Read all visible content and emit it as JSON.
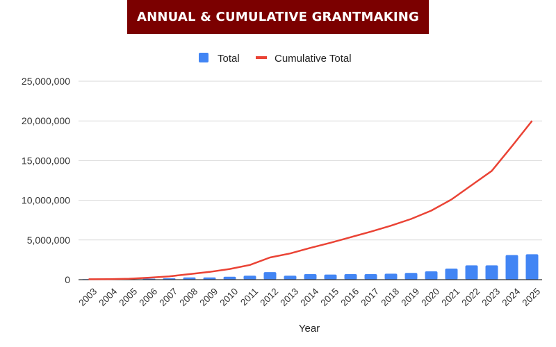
{
  "header": {
    "title": "ANNUAL & CUMULATIVE GRANTMAKING"
  },
  "colors": {
    "title_bg": "#7b0000",
    "bar": "#4285f4",
    "line": "#ea4335",
    "grid": "#d9d9d9",
    "axis": "#333333"
  },
  "chart_data": {
    "type": "bar+line",
    "title": "ANNUAL & CUMULATIVE GRANTMAKING",
    "xlabel": "Year",
    "ylabel": "",
    "ylim": [
      0,
      25000000
    ],
    "yticks": [
      0,
      5000000,
      10000000,
      15000000,
      20000000,
      25000000
    ],
    "ytick_labels": [
      "0",
      "5,000,000",
      "10,000,000",
      "15,000,000",
      "20,000,000",
      "25,000,000"
    ],
    "grid": true,
    "legend_position": "top-center",
    "categories": [
      "2003",
      "2004",
      "2005",
      "2006",
      "2007",
      "2008",
      "2009",
      "2010",
      "2011",
      "2012",
      "2013",
      "2014",
      "2015",
      "2016",
      "2017",
      "2018",
      "2019",
      "2020",
      "2021",
      "2022",
      "2023",
      "2024",
      "2025"
    ],
    "series": [
      {
        "name": "Total",
        "type": "bar",
        "values": [
          50000,
          20000,
          50000,
          130000,
          170000,
          280000,
          280000,
          370000,
          500000,
          950000,
          500000,
          700000,
          650000,
          700000,
          700000,
          750000,
          850000,
          1050000,
          1400000,
          1800000,
          1800000,
          3100000,
          3200000
        ]
      },
      {
        "name": "Cumulative Total",
        "type": "line",
        "values": [
          50000,
          70000,
          120000,
          250000,
          420000,
          700000,
          980000,
          1350000,
          1850000,
          2800000,
          3300000,
          4000000,
          4650000,
          5350000,
          6050000,
          6800000,
          7650000,
          8700000,
          10100000,
          11900000,
          13700000,
          16800000,
          20000000
        ]
      }
    ]
  }
}
